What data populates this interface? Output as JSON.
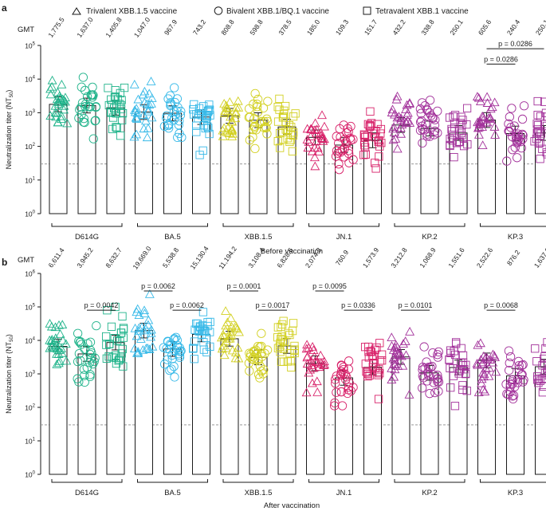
{
  "legend": {
    "items": [
      {
        "marker": "triangle",
        "label": "Trivalent XBB.1.5 vaccine"
      },
      {
        "marker": "circle",
        "label": "Bivalent XBB.1/BQ.1 vaccine"
      },
      {
        "marker": "square",
        "label": "Tetravalent XBB.1 vaccine"
      }
    ]
  },
  "gmt_label": "GMT",
  "colors": {
    "D614G": "#1fb38a",
    "BA.5": "#37b9e8",
    "XBB.1.5": "#d2d021",
    "JN.1": "#d8226a",
    "KP.2": "#a2309a",
    "KP.3": "#a2309a",
    "axis": "#1a1a1a",
    "dashed": "#8a8a8a"
  },
  "chart_data": [
    {
      "type": "bar",
      "panel_letter": "a",
      "title": "",
      "xlabel": "Before vaccination",
      "ylabel": "Neutralization titer (NT",
      "ylabel_sub": "50",
      "ylabel_close": ")",
      "scale": "log10",
      "ylim": [
        1,
        100000
      ],
      "ytick_base": "10",
      "ytick_exponents": [
        "0",
        "1",
        "2",
        "3",
        "4",
        "5"
      ],
      "lod": 30,
      "categories": [
        "D614G",
        "BA.5",
        "XBB.1.5",
        "JN.1",
        "KP.2",
        "KP.3"
      ],
      "series": [
        {
          "name": "Trivalent XBB.1.5 vaccine",
          "marker": "triangle",
          "values": [
            1775.5,
            1047.0,
            808.8,
            185.0,
            432.2,
            605.6
          ],
          "gmt_labels": [
            "1,775.5",
            "1,047.0",
            "808.8",
            "185.0",
            "432.2",
            "605.6"
          ]
        },
        {
          "name": "Bivalent XBB.1/BQ.1 vaccine",
          "marker": "circle",
          "values": [
            1637.0,
            967.9,
            598.8,
            109.3,
            338.8,
            240.4
          ],
          "gmt_labels": [
            "1,637.0",
            "967.9",
            "598.8",
            "109.3",
            "338.8",
            "240.4"
          ]
        },
        {
          "name": "Tetravalent XBB.1 vaccine",
          "marker": "square",
          "values": [
            1405.8,
            743.2,
            378.5,
            151.7,
            250.1,
            250.1
          ],
          "gmt_labels": [
            "1,405.8",
            "743.2",
            "378.5",
            "151.7",
            "250.1",
            "250.1"
          ]
        }
      ],
      "comparisons": [
        {
          "group": 5,
          "from": 0,
          "to": 2,
          "p": "p = 0.0286",
          "y": 80000
        },
        {
          "group": 5,
          "from": 0,
          "to": 1,
          "p": "p = 0.0286",
          "y": 28000
        }
      ]
    },
    {
      "type": "bar",
      "panel_letter": "b",
      "title": "",
      "xlabel": "After vaccination",
      "ylabel": "Neutralization titer (NT",
      "ylabel_sub": "50",
      "ylabel_close": ")",
      "scale": "log10",
      "ylim": [
        1,
        1000000
      ],
      "ytick_base": "10",
      "ytick_exponents": [
        "0",
        "1",
        "2",
        "3",
        "4",
        "5",
        "6"
      ],
      "lod": 30,
      "categories": [
        "D614G",
        "BA.5",
        "XBB.1.5",
        "JN.1",
        "KP.2",
        "KP.3"
      ],
      "series": [
        {
          "name": "Trivalent XBB.1.5 vaccine",
          "marker": "triangle",
          "values": [
            6611.4,
            19669.0,
            11194.2,
            2074.3,
            3212.8,
            2522.6
          ],
          "gmt_labels": [
            "6,611.4",
            "19,669.0",
            "11,194.2",
            "2,074.3",
            "3,212.8",
            "2,522.6"
          ]
        },
        {
          "name": "Bivalent XBB.1/BQ.1 vaccine",
          "marker": "circle",
          "values": [
            3945.2,
            5538.8,
            3108.4,
            760.9,
            1068.9,
            876.2
          ],
          "gmt_labels": [
            "3,945.2",
            "5,538.8",
            "3,108.4",
            "760.9",
            "1,068.9",
            "876.2"
          ]
        },
        {
          "name": "Tetravalent XBB.1 vaccine",
          "marker": "square",
          "values": [
            8632.7,
            15130.4,
            6828.6,
            1573.9,
            1551.6,
            1637.9
          ],
          "gmt_labels": [
            "8,632.7",
            "15,130.4",
            "6,828.6",
            "1,573.9",
            "1,551.6",
            "1,637.9"
          ]
        }
      ],
      "comparisons": [
        {
          "group": 0,
          "from": 1,
          "to": 2,
          "p": "p = 0.0042",
          "y": 80000
        },
        {
          "group": 1,
          "from": 0,
          "to": 1,
          "p": "p = 0.0062",
          "y": 300000
        },
        {
          "group": 1,
          "from": 1,
          "to": 2,
          "p": "p = 0.0062",
          "y": 80000
        },
        {
          "group": 2,
          "from": 0,
          "to": 1,
          "p": "p = 0.0001",
          "y": 300000
        },
        {
          "group": 2,
          "from": 1,
          "to": 2,
          "p": "p = 0.0017",
          "y": 80000
        },
        {
          "group": 3,
          "from": 0,
          "to": 1,
          "p": "p = 0.0095",
          "y": 300000
        },
        {
          "group": 3,
          "from": 1,
          "to": 2,
          "p": "p = 0.0336",
          "y": 80000
        },
        {
          "group": 4,
          "from": 0,
          "to": 1,
          "p": "p = 0.0101",
          "y": 80000
        },
        {
          "group": 5,
          "from": 0,
          "to": 1,
          "p": "p = 0.0068",
          "y": 80000
        }
      ]
    }
  ]
}
